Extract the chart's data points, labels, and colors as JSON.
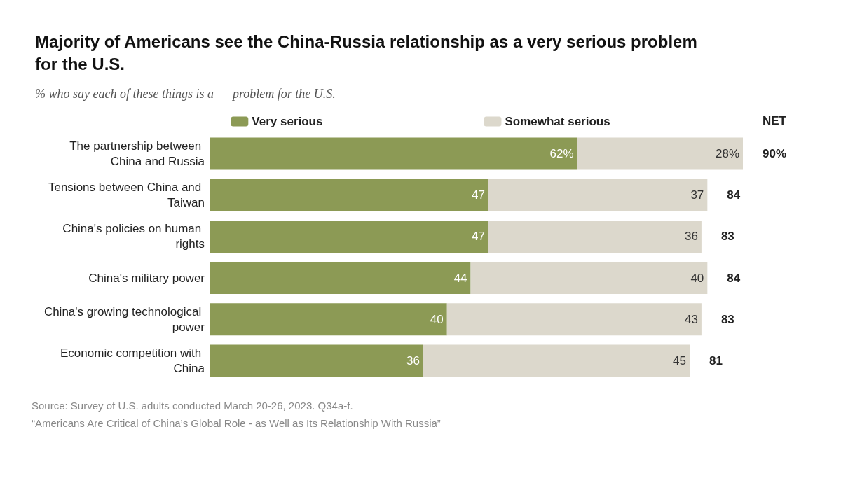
{
  "chart_data": {
    "type": "bar",
    "orientation": "horizontal",
    "stacked": true,
    "title": "Majority of Americans see the China-Russia relationship as a very serious problem for the U.S.",
    "subtitle": "% who say each of these things is a __ problem for the U.S.",
    "categories": [
      "The partnership between China and Russia",
      "Tensions between China and Taiwan",
      "China's policies on human rights",
      "China's military power",
      "China's growing technological power",
      "Economic competition with China"
    ],
    "series": [
      {
        "name": "Very serious",
        "color": "#8c9a55",
        "values": [
          62,
          47,
          47,
          44,
          40,
          36
        ],
        "value_labels": [
          "62%",
          "47",
          "47",
          "44",
          "40",
          "36"
        ]
      },
      {
        "name": "Somewhat serious",
        "color": "#dcd8cc",
        "values": [
          28,
          37,
          36,
          40,
          43,
          45
        ],
        "value_labels": [
          "28%",
          "37",
          "36",
          "40",
          "43",
          "45"
        ]
      }
    ],
    "totals": [
      "90%",
      "84",
      "83",
      "84",
      "83",
      "81"
    ],
    "annotations": [
      "NET",
      "Source: Survey of U.S. adults conducted March 20-26, 2023. Q34a-f.",
      "“Americans Are Critical of China’s Global Role - as Well as Its Relationship With Russia”"
    ],
    "legend": "top"
  }
}
